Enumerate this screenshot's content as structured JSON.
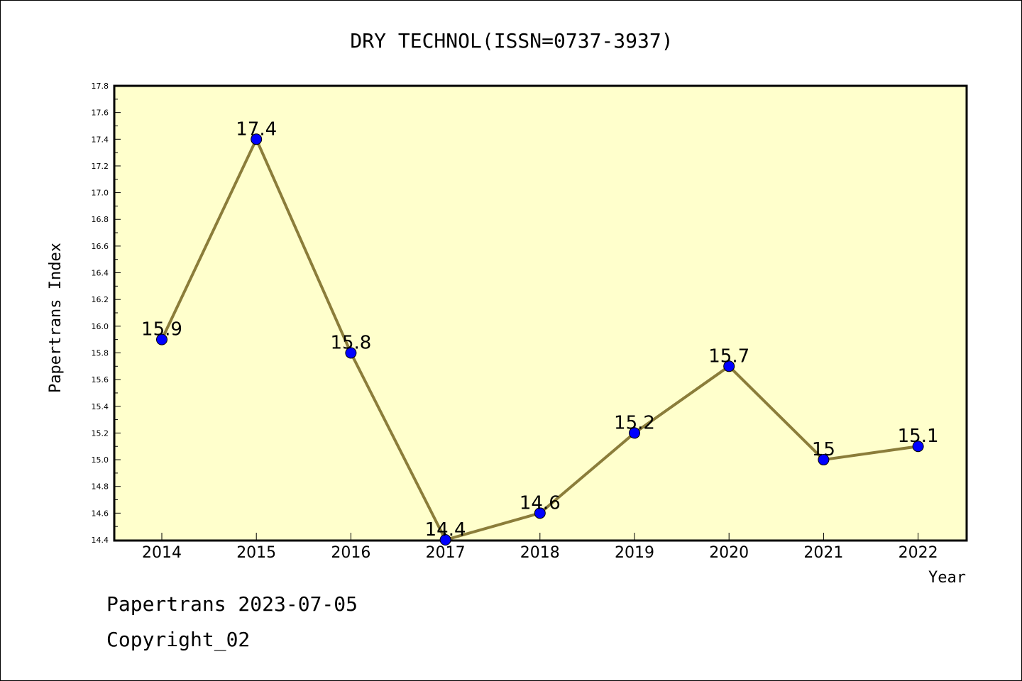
{
  "chart_data": {
    "type": "line",
    "title": "DRY TECHNOL(ISSN=0737-3937)",
    "xlabel": "Year",
    "ylabel": "Papertrans Index",
    "ylim": [
      14.4,
      17.8
    ],
    "y_ticks": [
      "14.4",
      "14.6",
      "14.8",
      "15.0",
      "15.2",
      "15.4",
      "15.6",
      "15.8",
      "16.0",
      "16.2",
      "16.4",
      "16.6",
      "16.8",
      "17.0",
      "17.2",
      "17.4",
      "17.6",
      "17.8"
    ],
    "categories": [
      "2014",
      "2015",
      "2016",
      "2017",
      "2018",
      "2019",
      "2020",
      "2021",
      "2022"
    ],
    "values": [
      15.9,
      17.4,
      15.8,
      14.4,
      14.6,
      15.2,
      15.7,
      15.0,
      15.1
    ],
    "data_labels": [
      "15.9",
      "17.4",
      "15.8",
      "14.4",
      "14.6",
      "15.2",
      "15.7",
      "15",
      "15.1"
    ],
    "grid": false,
    "legend": "none",
    "colors": {
      "plot_background": "#ffffcc",
      "line": "#8b7d3a",
      "marker": "#0000ff"
    }
  },
  "footer": {
    "date_line": "Papertrans 2023-07-05",
    "copyright": "Copyright_02"
  }
}
